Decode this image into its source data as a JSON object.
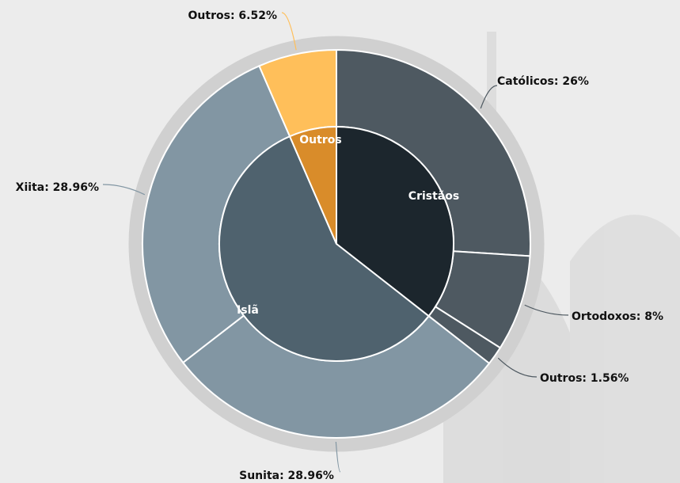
{
  "chart_data": {
    "type": "sunburst",
    "groups": [
      {
        "name": "Cristãos",
        "color": "#1c262d",
        "children": [
          {
            "label": "Católicos: 26%",
            "value": 26,
            "color": "#4e5961"
          },
          {
            "label": "Ortodoxos: 8%",
            "value": 8,
            "color": "#4e5961"
          },
          {
            "label": "Outros: 1.56%",
            "value": 1.56,
            "color": "#4e5961"
          }
        ]
      },
      {
        "name": "Islã",
        "color": "#4f626e",
        "children": [
          {
            "label": "Sunita: 28.96%",
            "value": 28.96,
            "color": "#8296a3"
          },
          {
            "label": "Xiita: 28.96%",
            "value": 28.96,
            "color": "#8296a3"
          }
        ]
      },
      {
        "name": "Outros",
        "color": "#d98c2a",
        "children": [
          {
            "label": "Outros: 6.52%",
            "value": 6.52,
            "color": "#ffbf5a"
          }
        ]
      }
    ]
  }
}
